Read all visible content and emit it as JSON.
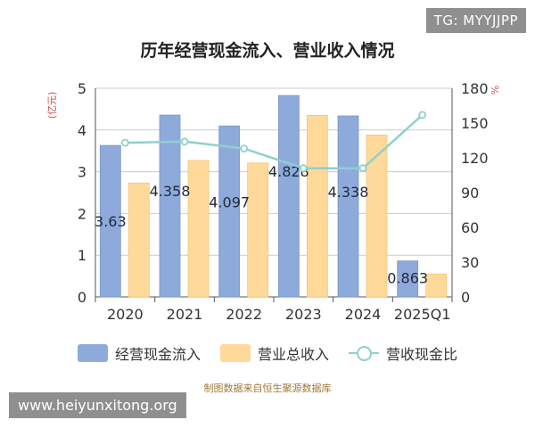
{
  "badge": "TG: MYYJJPP",
  "watermark": "www.heiyunxitong.org",
  "source": "制图数据来自恒生聚源数据库",
  "colors": {
    "bar_cash": "#8eaadb",
    "bar_revenue": "#ffd99a",
    "line_ratio": "#8fd0cc",
    "grid": "#cccccc",
    "axis_text": "#333333",
    "unit_text": "#d05050"
  },
  "chart_data": {
    "type": "bar",
    "title": "历年经营现金流入、营业收入情况",
    "categories": [
      "2020",
      "2021",
      "2022",
      "2023",
      "2024",
      "2025Q1"
    ],
    "y_left": {
      "unit": "(亿元)",
      "ticks": [
        "0",
        "1",
        "2",
        "3",
        "4",
        "5"
      ],
      "lim": [
        0,
        5
      ]
    },
    "y_right": {
      "unit": "%",
      "ticks": [
        "0",
        "30",
        "60",
        "90",
        "120",
        "150",
        "180"
      ],
      "lim": [
        0,
        180
      ]
    },
    "grid": true,
    "legend_position": "bottom",
    "series": [
      {
        "name": "经营现金流入",
        "type": "bar",
        "axis": "left",
        "values": [
          3.63,
          4.358,
          4.097,
          4.828,
          4.338,
          0.863
        ],
        "labels": [
          "3.63",
          "4.358",
          "4.097",
          "4.828",
          "4.338",
          "0.863"
        ]
      },
      {
        "name": "营业总收入",
        "type": "bar",
        "axis": "left",
        "values": [
          2.73,
          3.27,
          3.21,
          4.35,
          3.88,
          0.55
        ]
      },
      {
        "name": "营收现金比",
        "type": "line",
        "axis": "right",
        "values": [
          133,
          134,
          128,
          111,
          111,
          157
        ]
      }
    ]
  }
}
